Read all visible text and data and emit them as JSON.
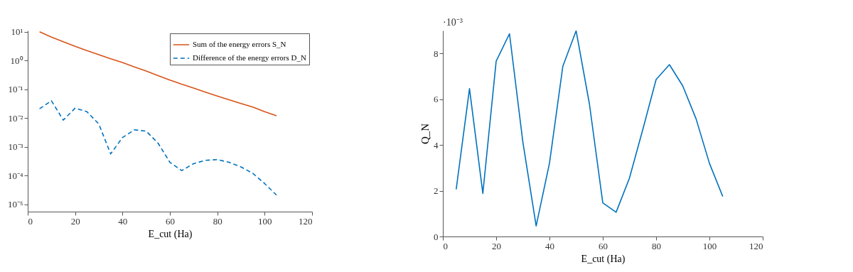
{
  "chart_data": [
    {
      "type": "line",
      "log": "y",
      "xlabel": "E_cut (Ha)",
      "x": [
        5,
        10,
        15,
        20,
        25,
        30,
        35,
        40,
        45,
        50,
        55,
        60,
        65,
        70,
        75,
        80,
        85,
        90,
        95,
        100,
        105
      ],
      "xlim": [
        0,
        120
      ],
      "xticks": [
        0,
        20,
        40,
        60,
        80,
        100,
        120
      ],
      "ylim": [
        5.6e-06,
        11
      ],
      "yticks": [
        {
          "value": 1e-05,
          "label": "10⁻⁵"
        },
        {
          "value": 0.0001,
          "label": "10⁻⁴"
        },
        {
          "value": 0.001,
          "label": "10⁻³"
        },
        {
          "value": 0.01,
          "label": "10⁻²"
        },
        {
          "value": 0.1,
          "label": "10⁻¹"
        },
        {
          "value": 1,
          "label": "10⁰"
        },
        {
          "value": 10,
          "label": "10¹"
        }
      ],
      "grid": false,
      "legend": "top right",
      "marker": "none",
      "series": [
        {
          "name": "Sum of the energy errors S_N",
          "color": "#d95319",
          "line_style": "solid",
          "values": [
            10,
            6.5,
            4.5,
            3.1,
            2.2,
            1.6,
            1.15,
            0.85,
            0.6,
            0.43,
            0.3,
            0.21,
            0.15,
            0.11,
            0.08,
            0.058,
            0.043,
            0.032,
            0.024,
            0.0166,
            0.012
          ]
        },
        {
          "name": "Difference of the energy errors D_N",
          "color": "#0072bd",
          "line_style": "dashed",
          "values": [
            0.021,
            0.04,
            0.0085,
            0.022,
            0.0166,
            0.0062,
            0.00057,
            0.0021,
            0.0039,
            0.0035,
            0.00135,
            0.00029,
            0.00015,
            0.00026,
            0.00034,
            0.00036,
            0.00029,
            0.0002,
            0.00012,
            5.3e-05,
            2.1e-05
          ]
        }
      ]
    },
    {
      "type": "line",
      "xlabel": "E_cut (Ha)",
      "ylabel": "Q_N",
      "x": [
        5,
        10,
        15,
        20,
        25,
        30,
        35,
        40,
        45,
        50,
        55,
        60,
        65,
        70,
        75,
        80,
        85,
        90,
        95,
        100,
        105
      ],
      "xlim": [
        0,
        120
      ],
      "xticks": [
        0,
        20,
        40,
        60,
        80,
        100,
        120
      ],
      "ylim": [
        0,
        9
      ],
      "yticks": [
        0,
        2,
        4,
        6,
        8
      ],
      "grid": false,
      "legend": false,
      "marker": "none",
      "annotations": [
        "·10⁻³"
      ],
      "series": [
        {
          "color": "#0072bd",
          "line_style": "solid",
          "values": [
            2.06,
            6.46,
            1.88,
            7.66,
            8.86,
            4.14,
            0.46,
            3.2,
            7.43,
            8.99,
            5.78,
            1.47,
            1.06,
            2.55,
            4.67,
            6.86,
            7.51,
            6.58,
            5.14,
            3.2,
            1.75
          ]
        }
      ]
    }
  ]
}
